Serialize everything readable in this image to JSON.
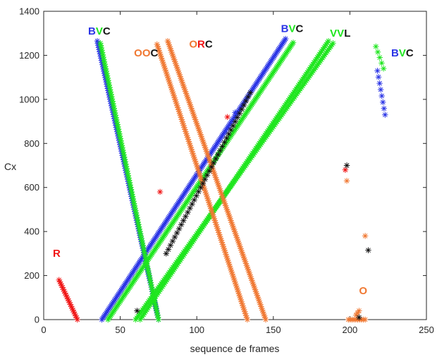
{
  "chart_data": {
    "type": "scatter",
    "title": "",
    "xlabel": "sequence de frames",
    "ylabel": "Cx",
    "xlim": [
      0,
      250
    ],
    "ylim": [
      0,
      1400
    ],
    "xticks": [
      0,
      50,
      100,
      150,
      200,
      250
    ],
    "yticks": [
      0,
      200,
      400,
      600,
      800,
      1000,
      1200,
      1400
    ],
    "grid": false,
    "marker": "asterisk",
    "colors": {
      "blue": "#2b35e6",
      "green": "#1ee61e",
      "red": "#f01414",
      "orange": "#f07832",
      "black": "#141414"
    },
    "series": [
      {
        "color": "red",
        "tracks": [
          {
            "from": [
              10,
              180
            ],
            "to": [
              22,
              0
            ],
            "n": 22
          },
          {
            "from": [
              76,
              580
            ],
            "to": [
              76,
              580
            ],
            "n": 1
          },
          {
            "from": [
              120,
              920
            ],
            "to": [
              120,
              920
            ],
            "n": 1
          },
          {
            "from": [
              197,
              680
            ],
            "to": [
              197,
              680
            ],
            "n": 1
          }
        ]
      },
      {
        "color": "blue",
        "tracks": [
          {
            "from": [
              35,
              1265
            ],
            "to": [
              75,
              0
            ],
            "n": 130
          },
          {
            "from": [
              38,
              0
            ],
            "to": [
              158,
              1275
            ],
            "n": 210
          },
          {
            "from": [
              125,
              940
            ],
            "to": [
              125,
              940
            ],
            "n": 1
          },
          {
            "from": [
              218,
              1130
            ],
            "to": [
              223,
              930
            ],
            "n": 8
          }
        ]
      },
      {
        "color": "green",
        "tracks": [
          {
            "from": [
              37,
              1255
            ],
            "to": [
              75,
              0
            ],
            "n": 120
          },
          {
            "from": [
              42,
              0
            ],
            "to": [
              163,
              1258
            ],
            "n": 210
          },
          {
            "from": [
              63,
              0
            ],
            "to": [
              186,
              1265
            ],
            "n": 170
          },
          {
            "from": [
              60,
              0
            ],
            "to": [
              189,
              1255
            ],
            "n": 170
          },
          {
            "from": [
              217,
              1240
            ],
            "to": [
              222,
              1140
            ],
            "n": 5
          }
        ]
      },
      {
        "color": "orange",
        "tracks": [
          {
            "from": [
              74,
              1250
            ],
            "to": [
              133,
              0
            ],
            "n": 140
          },
          {
            "from": [
              81,
              1265
            ],
            "to": [
              145,
              0
            ],
            "n": 150
          },
          {
            "from": [
              198,
              630
            ],
            "to": [
              198,
              630
            ],
            "n": 1
          },
          {
            "from": [
              210,
              380
            ],
            "to": [
              210,
              380
            ],
            "n": 1
          },
          {
            "from": [
              199,
              0
            ],
            "to": [
              210,
              0
            ],
            "n": 10
          },
          {
            "from": [
              204,
              20
            ],
            "to": [
              206,
              40
            ],
            "n": 3
          }
        ]
      },
      {
        "color": "black",
        "tracks": [
          {
            "from": [
              61,
              40
            ],
            "to": [
              61,
              40
            ],
            "n": 1
          },
          {
            "from": [
              80,
              300
            ],
            "to": [
              135,
              1030
            ],
            "n": 40
          },
          {
            "from": [
              198,
              700
            ],
            "to": [
              198,
              700
            ],
            "n": 1
          },
          {
            "from": [
              212,
              315
            ],
            "to": [
              212,
              315
            ],
            "n": 1
          },
          {
            "from": [
              206,
              10
            ],
            "to": [
              206,
              10
            ],
            "n": 1
          }
        ]
      }
    ],
    "annotations": [
      {
        "parts": [
          {
            "text": "B",
            "color": "blue"
          },
          {
            "text": "V",
            "color": "green"
          },
          {
            "text": "C",
            "color": "black"
          }
        ],
        "x": 29,
        "y": 1295
      },
      {
        "parts": [
          {
            "text": "O",
            "color": "orange"
          },
          {
            "text": "O",
            "color": "orange"
          },
          {
            "text": "C",
            "color": "black"
          }
        ],
        "x": 59,
        "y": 1195
      },
      {
        "parts": [
          {
            "text": "O",
            "color": "orange"
          },
          {
            "text": "R",
            "color": "red"
          },
          {
            "text": "C",
            "color": "black"
          }
        ],
        "x": 95,
        "y": 1235
      },
      {
        "parts": [
          {
            "text": "B",
            "color": "blue"
          },
          {
            "text": "V",
            "color": "green"
          },
          {
            "text": "C",
            "color": "black"
          }
        ],
        "x": 155,
        "y": 1305
      },
      {
        "parts": [
          {
            "text": "V",
            "color": "green"
          },
          {
            "text": "V",
            "color": "green"
          },
          {
            "text": "L",
            "color": "black"
          }
        ],
        "x": 187,
        "y": 1285
      },
      {
        "parts": [
          {
            "text": "B",
            "color": "blue"
          },
          {
            "text": "V",
            "color": "green"
          },
          {
            "text": "C",
            "color": "black"
          }
        ],
        "x": 227,
        "y": 1195
      },
      {
        "parts": [
          {
            "text": "R",
            "color": "red"
          }
        ],
        "x": 6,
        "y": 285
      },
      {
        "parts": [
          {
            "text": "O",
            "color": "orange"
          }
        ],
        "x": 206,
        "y": 115
      }
    ]
  }
}
